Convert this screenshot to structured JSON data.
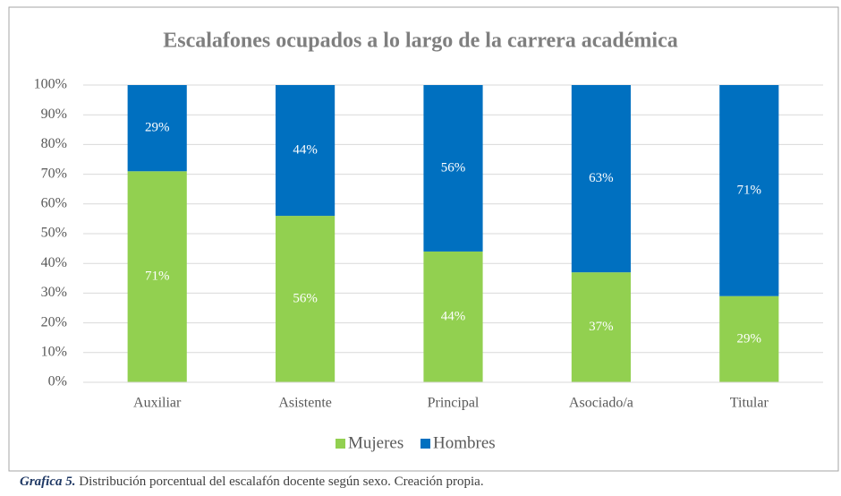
{
  "chart_data": {
    "type": "stacked_bar",
    "title": "Escalafones ocupados a lo largo de la carrera académica",
    "categories": [
      "Auxiliar",
      "Asistente",
      "Principal",
      "Asociado/a",
      "Titular"
    ],
    "series": [
      {
        "name": "Mujeres",
        "color": "#92d050",
        "values": [
          71,
          56,
          44,
          37,
          29
        ],
        "value_labels": [
          "71%",
          "56%",
          "44%",
          "37%",
          "29%"
        ]
      },
      {
        "name": "Hombres",
        "color": "#0070c0",
        "values": [
          29,
          44,
          56,
          63,
          71
        ],
        "value_labels": [
          "29%",
          "44%",
          "56%",
          "63%",
          "71%"
        ]
      }
    ],
    "ylim": [
      0,
      100
    ],
    "yticks": [
      {
        "value": 0,
        "label": "0%"
      },
      {
        "value": 10,
        "label": "10%"
      },
      {
        "value": 20,
        "label": "20%"
      },
      {
        "value": 30,
        "label": "30%"
      },
      {
        "value": 40,
        "label": "40%"
      },
      {
        "value": 50,
        "label": "50%"
      },
      {
        "value": 60,
        "label": "60%"
      },
      {
        "value": 70,
        "label": "70%"
      },
      {
        "value": 80,
        "label": "80%"
      },
      {
        "value": 90,
        "label": "90%"
      },
      {
        "value": 100,
        "label": "100%"
      }
    ],
    "grid": true,
    "legend": "bottom",
    "caption_label": "Grafica 5.",
    "caption": "Distribución porcentual del escalafón docente según sexo. Creación propia."
  }
}
